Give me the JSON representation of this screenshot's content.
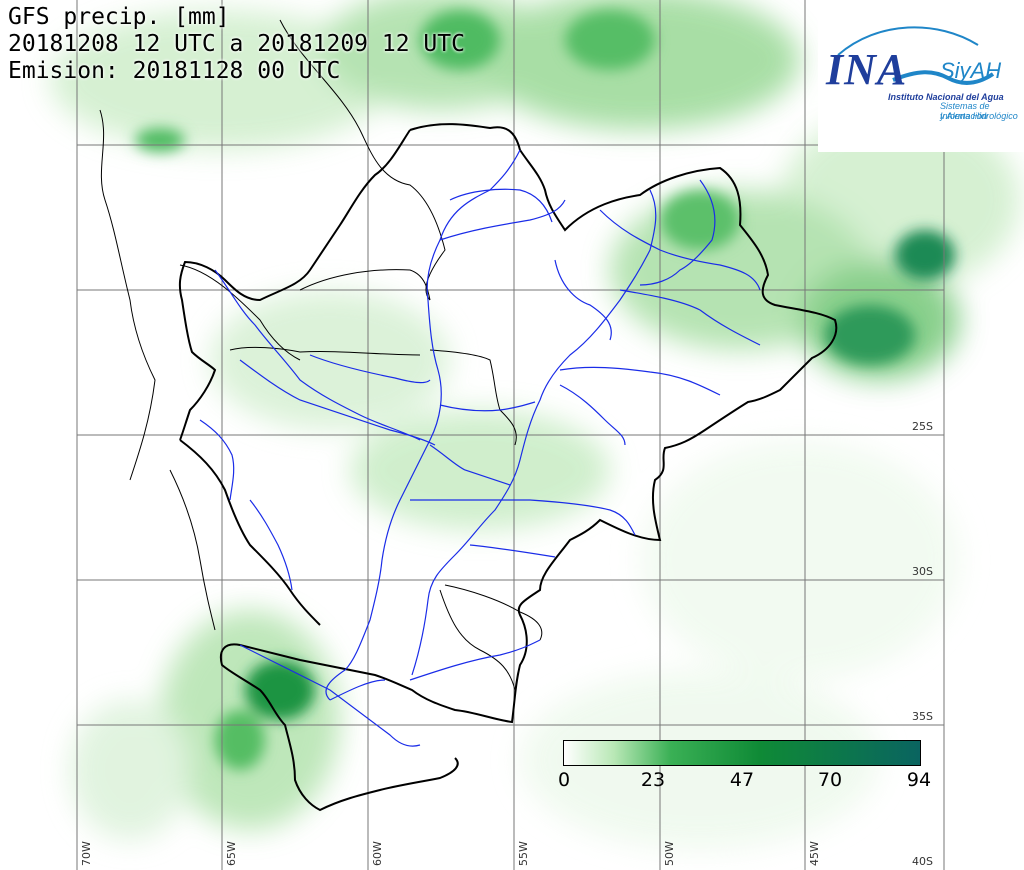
{
  "header": {
    "line1": "GFS precip. [mm]",
    "line2": "20181208 12 UTC a 20181209 12 UTC",
    "line3": "Emision: 20181128 00 UTC"
  },
  "logo": {
    "ina": "INA",
    "siyah": "SiyAH",
    "subtitle": "Instituto Nacional del Agua",
    "tagline1": "Sistemas de Información",
    "tagline2": "y Alerta Hidrológico"
  },
  "legend": {
    "ticks": [
      "0",
      "23",
      "47",
      "70",
      "94"
    ],
    "colors": [
      "#ffffff",
      "#b9e8b6",
      "#3ab055",
      "#0f8a36",
      "#0a6460"
    ]
  },
  "graticule": {
    "lat_labels": [
      "25S",
      "30S",
      "35S",
      "40S"
    ],
    "lon_labels": [
      "70W",
      "65W",
      "60W",
      "55W",
      "50W",
      "45W"
    ]
  },
  "colors": {
    "rivers": "#1a2ce8",
    "borders": "#000000",
    "grid": "#777777",
    "precip_light": "#c8ecc4",
    "precip_mid": "#3ab055",
    "precip_dark": "#0b7047"
  }
}
